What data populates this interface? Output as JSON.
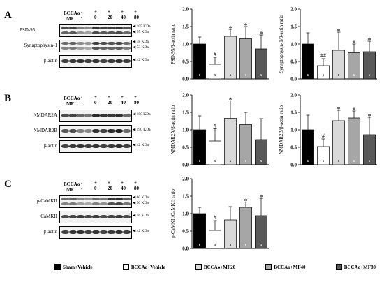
{
  "panels": [
    {
      "letter": "A",
      "markers": [
        {
          "name": "BCCAo",
          "values": [
            "-",
            "+",
            "+",
            "+",
            "+"
          ]
        },
        {
          "name": "MF",
          "values": [
            "-",
            "0",
            "20",
            "40",
            "80"
          ]
        }
      ],
      "blots": [
        {
          "label": "PSD-95",
          "kda": [
            "105 KDa",
            "95 KDa"
          ],
          "intensity": [
            0.75,
            0.45,
            0.8,
            0.78,
            0.7
          ]
        },
        {
          "label": "Synaptophysin-1",
          "kda": [
            "38 KDa",
            "33 KDa"
          ],
          "intensity": [
            0.6,
            0.4,
            0.75,
            0.7,
            0.6
          ]
        },
        {
          "label": "β-actin",
          "kda": [
            "42 KDa"
          ],
          "intensity": [
            0.8,
            0.8,
            0.8,
            0.8,
            0.8
          ]
        }
      ]
    },
    {
      "letter": "B",
      "markers": [
        {
          "name": "BCCAo",
          "values": [
            "-",
            "+",
            "+",
            "+",
            "+"
          ]
        },
        {
          "name": "MF",
          "values": [
            "-",
            "0",
            "20",
            "40",
            "80"
          ]
        }
      ],
      "blots": [
        {
          "label": "NMDAR2A",
          "kda": [
            "180 KDa"
          ],
          "intensity": [
            0.75,
            0.55,
            0.85,
            0.8,
            0.6
          ]
        },
        {
          "label": "NMDAR2B",
          "kda": [
            "190 KDa"
          ],
          "intensity": [
            0.7,
            0.45,
            0.8,
            0.85,
            0.6
          ]
        },
        {
          "label": "β-actin",
          "kda": [
            "42 KDa"
          ],
          "intensity": [
            0.8,
            0.8,
            0.8,
            0.8,
            0.8
          ]
        }
      ]
    },
    {
      "letter": "C",
      "markers": [
        {
          "name": "BCCAo",
          "values": [
            "-",
            "+",
            "+",
            "+",
            "+"
          ]
        },
        {
          "name": "MF",
          "values": [
            "-",
            "0",
            "20",
            "40",
            "80"
          ]
        }
      ],
      "blots": [
        {
          "label": "p-CaMKII",
          "kda": [
            "60 KDa",
            "50 KDa"
          ],
          "intensity": [
            0.6,
            0.4,
            0.55,
            0.8,
            0.65
          ]
        },
        {
          "label": "CaMKII",
          "kda": [
            "56 KDa"
          ],
          "intensity": [
            0.75,
            0.75,
            0.75,
            0.75,
            0.75
          ]
        },
        {
          "label": "β-actin",
          "kda": [
            "42 KDa"
          ],
          "intensity": [
            0.8,
            0.8,
            0.8,
            0.8,
            0.8
          ]
        }
      ]
    }
  ],
  "chart_data": [
    {
      "type": "bar",
      "ylabel": "PSD-95/β-actin ratio",
      "ylim": [
        0,
        2.0
      ],
      "yticks": [
        "0.0",
        "0.5",
        "1.0",
        "1.5",
        "2.0"
      ],
      "values": [
        1.0,
        0.42,
        1.22,
        1.15,
        0.86
      ],
      "errors": [
        0.2,
        0.2,
        0.2,
        0.35,
        0.4
      ],
      "n": [
        "6",
        "5",
        "6",
        "6",
        "5"
      ],
      "sig": [
        "",
        "#",
        "*",
        "*",
        "*"
      ]
    },
    {
      "type": "bar",
      "ylabel": "Synaptophysin-1/β-actin ratio",
      "ylim": [
        0,
        2.0
      ],
      "yticks": [
        "0.0",
        "0.5",
        "1.0",
        "1.5",
        "2.0"
      ],
      "values": [
        1.0,
        0.38,
        0.82,
        0.75,
        0.78
      ],
      "errors": [
        0.32,
        0.2,
        0.52,
        0.25,
        0.3
      ],
      "n": [
        "6",
        "5",
        "6",
        "6",
        "5"
      ],
      "sig": [
        "",
        "##",
        "*",
        "*",
        "*"
      ]
    },
    {
      "type": "bar",
      "ylabel": "NMDAR2A/β-actin ratio",
      "ylim": [
        0,
        2.0
      ],
      "yticks": [
        "0.0",
        "0.5",
        "1.0",
        "1.5",
        "2.0"
      ],
      "values": [
        1.0,
        0.68,
        1.33,
        1.15,
        0.72
      ],
      "errors": [
        0.4,
        0.35,
        0.5,
        0.35,
        0.6
      ],
      "n": [
        "6",
        "5",
        "6",
        "6",
        "5"
      ],
      "sig": [
        "",
        "#",
        "*",
        "",
        ""
      ]
    },
    {
      "type": "bar",
      "ylabel": "NMDAR2B/β-actin ratio",
      "ylim": [
        0,
        2.0
      ],
      "yticks": [
        "0.0",
        "0.5",
        "1.0",
        "1.5",
        "2.0"
      ],
      "values": [
        1.0,
        0.52,
        1.26,
        1.34,
        0.86
      ],
      "errors": [
        0.42,
        0.22,
        0.3,
        0.2,
        0.5
      ],
      "n": [
        "6",
        "5",
        "6",
        "6",
        "5"
      ],
      "sig": [
        "",
        "#",
        "*",
        "*",
        "*"
      ]
    },
    {
      "type": "bar",
      "ylabel": "p-CaMKII/CaMKII ratio",
      "ylim": [
        0,
        2.0
      ],
      "yticks": [
        "0.0",
        "0.5",
        "1.0",
        "1.5",
        "2.0"
      ],
      "values": [
        1.0,
        0.52,
        0.82,
        1.18,
        0.94
      ],
      "errors": [
        0.18,
        0.28,
        0.38,
        0.15,
        0.5
      ],
      "n": [
        "6",
        "5",
        "6",
        "6",
        "5"
      ],
      "sig": [
        "",
        "#",
        "",
        "*",
        "*"
      ]
    }
  ],
  "legend": [
    {
      "label": "Sham+Vehicle",
      "color": "#000000"
    },
    {
      "label": "BCCAo+Vehicle",
      "color": "#ffffff"
    },
    {
      "label": "BCCAo+MF20",
      "color": "#d9d9d9"
    },
    {
      "label": "BCCAo+MF40",
      "color": "#a6a6a6"
    },
    {
      "label": "BCCAo+MF80",
      "color": "#595959"
    }
  ]
}
